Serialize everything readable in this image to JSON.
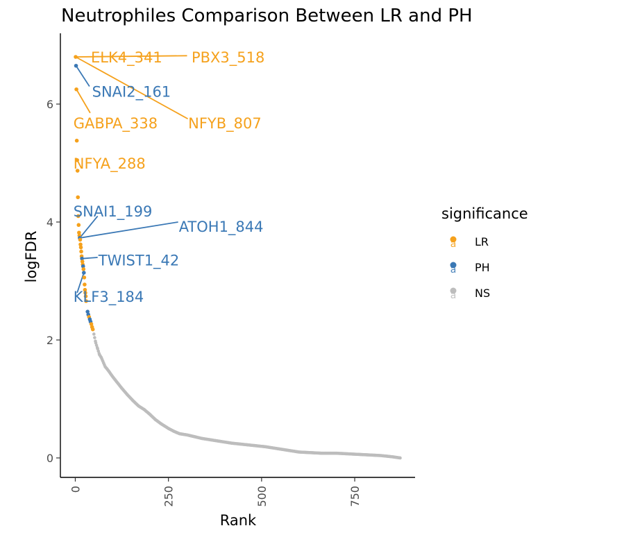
{
  "chart_data": {
    "type": "scatter",
    "title": "Neutrophiles Comparison Between LR and PH",
    "xlabel": "Rank",
    "ylabel": "logFDR",
    "xlim": [
      -40,
      912
    ],
    "ylim": [
      -0.33,
      7.2
    ],
    "x_ticks": [
      0,
      250,
      500,
      750
    ],
    "y_ticks": [
      0,
      2,
      4,
      6
    ],
    "legend": {
      "title": "significance",
      "placement": "right",
      "entries": [
        {
          "label": "LR",
          "color": "#F5A11C",
          "glyph": "a"
        },
        {
          "label": "PH",
          "color": "#3A78B5",
          "glyph": "a"
        },
        {
          "label": "NS",
          "color": "#BDBDBD",
          "glyph": "a"
        }
      ]
    },
    "colors": {
      "LR": "#F5A11C",
      "PH": "#3A78B5",
      "NS": "#BDBDBD"
    },
    "significant_points": [
      {
        "rank": 1,
        "logFDR": 6.8,
        "group": "LR"
      },
      {
        "rank": 2,
        "logFDR": 6.65,
        "group": "PH"
      },
      {
        "rank": 3,
        "logFDR": 6.25,
        "group": "LR"
      },
      {
        "rank": 4,
        "logFDR": 5.38,
        "group": "LR"
      },
      {
        "rank": 5,
        "logFDR": 5.05,
        "group": "LR"
      },
      {
        "rank": 6,
        "logFDR": 4.87,
        "group": "LR"
      },
      {
        "rank": 7,
        "logFDR": 4.42,
        "group": "LR"
      },
      {
        "rank": 8,
        "logFDR": 4.1,
        "group": "LR"
      },
      {
        "rank": 9,
        "logFDR": 3.95,
        "group": "LR"
      },
      {
        "rank": 10,
        "logFDR": 3.82,
        "group": "LR"
      },
      {
        "rank": 11,
        "logFDR": 3.77,
        "group": "LR"
      },
      {
        "rank": 12,
        "logFDR": 3.73,
        "group": "PH"
      },
      {
        "rank": 13,
        "logFDR": 3.7,
        "group": "LR"
      },
      {
        "rank": 14,
        "logFDR": 3.62,
        "group": "LR"
      },
      {
        "rank": 15,
        "logFDR": 3.57,
        "group": "LR"
      },
      {
        "rank": 16,
        "logFDR": 3.5,
        "group": "LR"
      },
      {
        "rank": 17,
        "logFDR": 3.42,
        "group": "LR"
      },
      {
        "rank": 18,
        "logFDR": 3.38,
        "group": "PH"
      },
      {
        "rank": 19,
        "logFDR": 3.33,
        "group": "LR"
      },
      {
        "rank": 20,
        "logFDR": 3.28,
        "group": "LR"
      },
      {
        "rank": 21,
        "logFDR": 3.25,
        "group": "PH"
      },
      {
        "rank": 22,
        "logFDR": 3.2,
        "group": "LR"
      },
      {
        "rank": 23,
        "logFDR": 3.14,
        "group": "PH"
      },
      {
        "rank": 24,
        "logFDR": 3.06,
        "group": "LR"
      },
      {
        "rank": 25,
        "logFDR": 2.94,
        "group": "LR"
      },
      {
        "rank": 26,
        "logFDR": 2.85,
        "group": "LR"
      },
      {
        "rank": 27,
        "logFDR": 2.8,
        "group": "LR"
      },
      {
        "rank": 28,
        "logFDR": 2.74,
        "group": "LR"
      },
      {
        "rank": 29,
        "logFDR": 2.66,
        "group": "LR"
      },
      {
        "rank": 33,
        "logFDR": 2.48,
        "group": "PH"
      },
      {
        "rank": 35,
        "logFDR": 2.43,
        "group": "PH"
      },
      {
        "rank": 37,
        "logFDR": 2.39,
        "group": "LR"
      },
      {
        "rank": 39,
        "logFDR": 2.35,
        "group": "PH"
      },
      {
        "rank": 41,
        "logFDR": 2.31,
        "group": "PH"
      },
      {
        "rank": 43,
        "logFDR": 2.27,
        "group": "LR"
      },
      {
        "rank": 45,
        "logFDR": 2.22,
        "group": "LR"
      },
      {
        "rank": 47,
        "logFDR": 2.18,
        "group": "LR"
      }
    ],
    "ns_curve": [
      [
        50,
        2.1
      ],
      [
        55,
        1.95
      ],
      [
        60,
        1.85
      ],
      [
        65,
        1.75
      ],
      [
        70,
        1.7
      ],
      [
        80,
        1.55
      ],
      [
        90,
        1.47
      ],
      [
        100,
        1.38
      ],
      [
        110,
        1.3
      ],
      [
        125,
        1.18
      ],
      [
        140,
        1.07
      ],
      [
        155,
        0.97
      ],
      [
        170,
        0.88
      ],
      [
        185,
        0.82
      ],
      [
        200,
        0.74
      ],
      [
        215,
        0.65
      ],
      [
        230,
        0.58
      ],
      [
        250,
        0.5
      ],
      [
        265,
        0.45
      ],
      [
        280,
        0.41
      ],
      [
        300,
        0.39
      ],
      [
        320,
        0.36
      ],
      [
        340,
        0.33
      ],
      [
        360,
        0.31
      ],
      [
        380,
        0.29
      ],
      [
        400,
        0.27
      ],
      [
        420,
        0.25
      ],
      [
        450,
        0.23
      ],
      [
        480,
        0.21
      ],
      [
        510,
        0.19
      ],
      [
        540,
        0.16
      ],
      [
        570,
        0.13
      ],
      [
        600,
        0.1
      ],
      [
        630,
        0.09
      ],
      [
        660,
        0.08
      ],
      [
        700,
        0.08
      ],
      [
        730,
        0.07
      ],
      [
        760,
        0.06
      ],
      [
        790,
        0.05
      ],
      [
        820,
        0.04
      ],
      [
        850,
        0.02
      ],
      [
        872,
        0.0
      ]
    ],
    "annotations": [
      {
        "text": "ELK4_341",
        "group": "LR",
        "rank": 1,
        "logFDR": 6.8,
        "label_x": 42,
        "label_y": 6.8,
        "line_to": [
          0,
          6.8
        ]
      },
      {
        "text": "PBX3_518",
        "group": "LR",
        "rank": 1,
        "logFDR": 6.8,
        "label_x": 312,
        "label_y": 6.8,
        "line_to": [
          300,
          6.82
        ]
      },
      {
        "text": "SNAI2_161",
        "group": "PH",
        "rank": 2,
        "logFDR": 6.65,
        "label_x": 45,
        "label_y": 6.22,
        "line_to": [
          38,
          6.3
        ]
      },
      {
        "text": "NFYB_807",
        "group": "LR",
        "rank": 1,
        "logFDR": 6.8,
        "label_x": 303,
        "label_y": 5.68,
        "line_to": [
          302,
          5.75
        ]
      },
      {
        "text": "GABPA_338",
        "group": "LR",
        "rank": 3,
        "logFDR": 6.25,
        "label_x": -5,
        "label_y": 5.68,
        "line_to": [
          40,
          5.85
        ]
      },
      {
        "text": "NFYA_288",
        "group": "LR",
        "rank": 5,
        "logFDR": 5.05,
        "label_x": -5,
        "label_y": 5.0,
        "line_to": [
          5,
          5.05
        ]
      },
      {
        "text": "SNAI1_199",
        "group": "PH",
        "rank": 12,
        "logFDR": 3.73,
        "label_x": -5,
        "label_y": 4.19,
        "line_to": [
          60,
          4.1
        ]
      },
      {
        "text": "ATOH1_844",
        "group": "PH",
        "rank": 12,
        "logFDR": 3.73,
        "label_x": 278,
        "label_y": 3.93,
        "line_to": [
          276,
          4.0
        ]
      },
      {
        "text": "TWIST1_42",
        "group": "PH",
        "rank": 18,
        "logFDR": 3.38,
        "label_x": 62,
        "label_y": 3.36,
        "line_to": [
          60,
          3.4
        ]
      },
      {
        "text": "KLF3_184",
        "group": "PH",
        "rank": 23,
        "logFDR": 3.14,
        "label_x": -5,
        "label_y": 2.74,
        "line_to": [
          5,
          2.8
        ]
      }
    ]
  }
}
